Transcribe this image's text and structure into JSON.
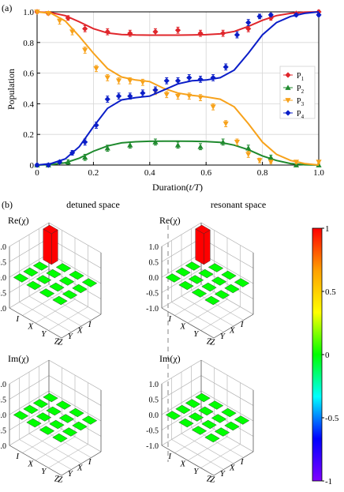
{
  "panel_a": {
    "label": "(a)",
    "chart_data": {
      "type": "scatter",
      "xlabel_main": "Duration(",
      "xlabel_var": "t/T",
      "xlabel_end": ")",
      "ylabel": "Population",
      "xlim": [
        0,
        1
      ],
      "ylim": [
        0,
        1
      ],
      "xticks": [
        "0",
        "0.2",
        "0.4",
        "0.6",
        "0.8",
        "1.0"
      ],
      "yticks": [
        "0",
        "0.2",
        "0.4",
        "0.6",
        "0.8",
        "1.0"
      ],
      "grid": true,
      "legend_position": "right",
      "x": [
        0,
        0.042,
        0.083,
        0.125,
        0.167,
        0.208,
        0.25,
        0.292,
        0.333,
        0.375,
        0.417,
        0.458,
        0.5,
        0.542,
        0.583,
        0.625,
        0.667,
        0.708,
        0.75,
        0.792,
        0.833,
        0.875,
        0.917,
        0.958,
        1.0
      ],
      "series": [
        {
          "name": "P",
          "sub": "1",
          "color": "#e0262b",
          "marker": "diamond",
          "points": [
            [
              0.0,
              1.0
            ],
            [
              0.04,
              0.99
            ],
            [
              0.11,
              0.96
            ],
            [
              0.17,
              0.89
            ],
            [
              0.25,
              0.87
            ],
            [
              0.33,
              0.86
            ],
            [
              0.42,
              0.87
            ],
            [
              0.5,
              0.88
            ],
            [
              0.58,
              0.86
            ],
            [
              0.66,
              0.86
            ],
            [
              0.75,
              0.89
            ],
            [
              0.83,
              0.96
            ],
            [
              0.92,
              0.99
            ],
            [
              1.0,
              1.0
            ]
          ],
          "errors": [
            0.01,
            0.01,
            0.015,
            0.02,
            0.02,
            0.02,
            0.02,
            0.02,
            0.02,
            0.02,
            0.02,
            0.015,
            0.01,
            0.01
          ],
          "fit": [
            [
              0.0,
              1.0
            ],
            [
              0.05,
              0.995
            ],
            [
              0.1,
              0.975
            ],
            [
              0.15,
              0.935
            ],
            [
              0.2,
              0.89
            ],
            [
              0.25,
              0.862
            ],
            [
              0.3,
              0.852
            ],
            [
              0.35,
              0.849
            ],
            [
              0.4,
              0.848
            ],
            [
              0.45,
              0.848
            ],
            [
              0.5,
              0.848
            ],
            [
              0.55,
              0.849
            ],
            [
              0.6,
              0.851
            ],
            [
              0.65,
              0.856
            ],
            [
              0.7,
              0.872
            ],
            [
              0.75,
              0.905
            ],
            [
              0.8,
              0.945
            ],
            [
              0.85,
              0.975
            ],
            [
              0.9,
              0.99
            ],
            [
              0.95,
              0.998
            ],
            [
              1.0,
              1.0
            ]
          ]
        },
        {
          "name": "P",
          "sub": "2",
          "color": "#1f8a2e",
          "marker": "triangle",
          "points": [
            [
              0.0,
              0.0
            ],
            [
              0.04,
              0.0
            ],
            [
              0.11,
              0.02
            ],
            [
              0.17,
              0.05
            ],
            [
              0.25,
              0.11
            ],
            [
              0.33,
              0.13
            ],
            [
              0.42,
              0.15
            ],
            [
              0.5,
              0.13
            ],
            [
              0.58,
              0.12
            ],
            [
              0.66,
              0.15
            ],
            [
              0.75,
              0.11
            ],
            [
              0.83,
              0.05
            ],
            [
              0.92,
              0.0
            ],
            [
              1.0,
              0.0
            ]
          ],
          "errors": [
            0.01,
            0.01,
            0.015,
            0.02,
            0.02,
            0.02,
            0.02,
            0.02,
            0.02,
            0.02,
            0.02,
            0.015,
            0.01,
            0.01
          ],
          "fit": [
            [
              0.0,
              0.0
            ],
            [
              0.05,
              0.003
            ],
            [
              0.1,
              0.015
            ],
            [
              0.15,
              0.045
            ],
            [
              0.2,
              0.09
            ],
            [
              0.25,
              0.125
            ],
            [
              0.3,
              0.145
            ],
            [
              0.35,
              0.152
            ],
            [
              0.4,
              0.155
            ],
            [
              0.45,
              0.156
            ],
            [
              0.5,
              0.156
            ],
            [
              0.55,
              0.155
            ],
            [
              0.6,
              0.153
            ],
            [
              0.65,
              0.148
            ],
            [
              0.7,
              0.13
            ],
            [
              0.75,
              0.1
            ],
            [
              0.8,
              0.06
            ],
            [
              0.85,
              0.03
            ],
            [
              0.9,
              0.01
            ],
            [
              0.95,
              0.002
            ],
            [
              1.0,
              0.0
            ]
          ]
        },
        {
          "name": "P",
          "sub": "3",
          "color": "#f7a21b",
          "marker": "triangle-down",
          "points": [
            [
              0.0,
              1.0
            ],
            [
              0.04,
              0.99
            ],
            [
              0.08,
              0.94
            ],
            [
              0.125,
              0.87
            ],
            [
              0.17,
              0.75
            ],
            [
              0.21,
              0.63
            ],
            [
              0.25,
              0.57
            ],
            [
              0.29,
              0.55
            ],
            [
              0.33,
              0.55
            ],
            [
              0.375,
              0.54
            ],
            [
              0.42,
              0.48
            ],
            [
              0.46,
              0.46
            ],
            [
              0.5,
              0.45
            ],
            [
              0.54,
              0.45
            ],
            [
              0.58,
              0.44
            ],
            [
              0.625,
              0.38
            ],
            [
              0.67,
              0.27
            ],
            [
              0.71,
              0.15
            ],
            [
              0.75,
              0.07
            ],
            [
              0.79,
              0.03
            ],
            [
              0.83,
              0.02
            ],
            [
              0.92,
              0.02
            ],
            [
              1.0,
              0.02
            ]
          ],
          "errors": [
            0.01,
            0.01,
            0.02,
            0.02,
            0.02,
            0.02,
            0.02,
            0.02,
            0.02,
            0.02,
            0.02,
            0.02,
            0.02,
            0.02,
            0.02,
            0.02,
            0.02,
            0.02,
            0.02,
            0.015,
            0.01,
            0.01,
            0.01
          ],
          "fit": [
            [
              0.0,
              1.0
            ],
            [
              0.05,
              0.99
            ],
            [
              0.1,
              0.94
            ],
            [
              0.15,
              0.84
            ],
            [
              0.2,
              0.73
            ],
            [
              0.25,
              0.63
            ],
            [
              0.3,
              0.575
            ],
            [
              0.35,
              0.555
            ],
            [
              0.4,
              0.545
            ],
            [
              0.45,
              0.5
            ],
            [
              0.5,
              0.47
            ],
            [
              0.55,
              0.455
            ],
            [
              0.6,
              0.445
            ],
            [
              0.65,
              0.43
            ],
            [
              0.7,
              0.38
            ],
            [
              0.75,
              0.27
            ],
            [
              0.8,
              0.15
            ],
            [
              0.85,
              0.07
            ],
            [
              0.9,
              0.03
            ],
            [
              0.95,
              0.01
            ],
            [
              1.0,
              0.0
            ]
          ]
        },
        {
          "name": "P",
          "sub": "4",
          "color": "#0b1ec8",
          "marker": "diamond",
          "points": [
            [
              0.0,
              0.0
            ],
            [
              0.04,
              0.0
            ],
            [
              0.08,
              0.02
            ],
            [
              0.125,
              0.08
            ],
            [
              0.17,
              0.15
            ],
            [
              0.21,
              0.26
            ],
            [
              0.25,
              0.43
            ],
            [
              0.29,
              0.45
            ],
            [
              0.33,
              0.45
            ],
            [
              0.375,
              0.47
            ],
            [
              0.42,
              0.49
            ],
            [
              0.46,
              0.55
            ],
            [
              0.5,
              0.55
            ],
            [
              0.54,
              0.57
            ],
            [
              0.58,
              0.56
            ],
            [
              0.625,
              0.57
            ],
            [
              0.67,
              0.64
            ],
            [
              0.71,
              0.85
            ],
            [
              0.75,
              0.93
            ],
            [
              0.79,
              0.97
            ],
            [
              0.83,
              0.98
            ],
            [
              0.92,
              0.98
            ],
            [
              1.0,
              0.98
            ]
          ],
          "errors": [
            0.01,
            0.01,
            0.01,
            0.015,
            0.02,
            0.02,
            0.02,
            0.02,
            0.02,
            0.02,
            0.02,
            0.02,
            0.02,
            0.02,
            0.02,
            0.02,
            0.02,
            0.02,
            0.02,
            0.015,
            0.01,
            0.01,
            0.01
          ],
          "fit": [
            [
              0.0,
              0.0
            ],
            [
              0.05,
              0.01
            ],
            [
              0.1,
              0.04
            ],
            [
              0.15,
              0.12
            ],
            [
              0.2,
              0.25
            ],
            [
              0.25,
              0.37
            ],
            [
              0.3,
              0.425
            ],
            [
              0.35,
              0.44
            ],
            [
              0.4,
              0.45
            ],
            [
              0.45,
              0.49
            ],
            [
              0.5,
              0.53
            ],
            [
              0.55,
              0.55
            ],
            [
              0.6,
              0.555
            ],
            [
              0.65,
              0.57
            ],
            [
              0.7,
              0.62
            ],
            [
              0.75,
              0.73
            ],
            [
              0.8,
              0.85
            ],
            [
              0.85,
              0.93
            ],
            [
              0.9,
              0.97
            ],
            [
              0.95,
              0.99
            ],
            [
              1.0,
              1.0
            ]
          ]
        }
      ]
    }
  },
  "panel_b": {
    "label": "(b)",
    "titles": [
      "detuned space",
      "resonant space"
    ],
    "re_label": "Re(χ)",
    "im_label": "Im(χ)",
    "zticks": [
      "1.0",
      "0.5",
      "0.0",
      "-0.5",
      "-1.0"
    ],
    "axis_labels": [
      "I",
      "X",
      "Y",
      "Z"
    ],
    "chart_data": [
      {
        "type": "bar3d",
        "name": "detuned Re",
        "matrix": [
          [
            1,
            0,
            0,
            0
          ],
          [
            0,
            0,
            0,
            0
          ],
          [
            0,
            0,
            0,
            0
          ],
          [
            0,
            0,
            0,
            0
          ]
        ]
      },
      {
        "type": "bar3d",
        "name": "resonant Re",
        "matrix": [
          [
            1,
            0,
            0,
            0
          ],
          [
            0,
            0,
            0,
            0
          ],
          [
            0,
            0,
            0,
            0
          ],
          [
            0,
            0,
            0,
            0
          ]
        ]
      },
      {
        "type": "bar3d",
        "name": "detuned Im",
        "matrix": [
          [
            0,
            0,
            0,
            0
          ],
          [
            0,
            0,
            0,
            0
          ],
          [
            0,
            0,
            0,
            0
          ],
          [
            0,
            0,
            0,
            0
          ]
        ]
      },
      {
        "type": "bar3d",
        "name": "resonant Im",
        "matrix": [
          [
            0,
            0,
            0,
            0
          ],
          [
            0,
            0,
            0,
            0
          ],
          [
            0,
            0,
            0,
            0
          ],
          [
            0,
            0,
            0,
            0
          ]
        ]
      }
    ],
    "colorbar": {
      "ticks": [
        "1",
        "0.5",
        "0",
        "-0.5",
        "-1"
      ],
      "colors": [
        "#ff0000",
        "#ffa000",
        "#ffff00",
        "#00ff00",
        "#00ffff",
        "#0000ff",
        "#8000ff"
      ]
    }
  }
}
